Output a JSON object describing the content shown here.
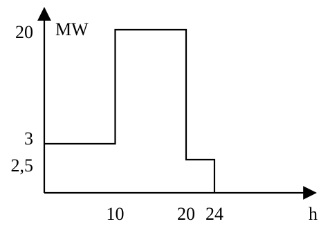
{
  "chart_data": {
    "type": "line",
    "step": true,
    "ylabel": "MW",
    "xlabel": "h",
    "x_ticks": [
      {
        "value": 10,
        "label": "10"
      },
      {
        "value": 20,
        "label": "20"
      },
      {
        "value": 24,
        "label": "24"
      }
    ],
    "y_ticks": [
      {
        "value": 20,
        "label": "20"
      },
      {
        "value": 3,
        "label": "3"
      },
      {
        "value": 2.5,
        "label": "2,5"
      }
    ],
    "segments": [
      {
        "x_start": 0,
        "x_end": 10,
        "y": 3
      },
      {
        "x_start": 10,
        "x_end": 20,
        "y": 20
      },
      {
        "x_start": 20,
        "x_end": 24,
        "y": 2.5
      }
    ],
    "grid": false,
    "colors": {
      "line": "#000000",
      "background": "#ffffff"
    }
  }
}
